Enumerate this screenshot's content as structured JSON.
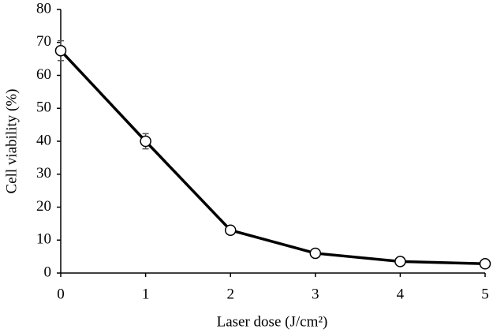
{
  "chart_data": {
    "type": "line",
    "x_label": "Laser dose (J/cm²)",
    "y_label": "Cell viability  (%)",
    "x": [
      0,
      1,
      2,
      3,
      4,
      5
    ],
    "values": [
      67.5,
      40,
      13,
      6,
      3.5,
      2.8
    ],
    "errors": [
      3,
      2.3,
      0.5,
      0.5,
      0.5,
      0.3
    ],
    "color": "#000000",
    "xlim": [
      0,
      5
    ],
    "xticks": [
      0,
      1,
      2,
      3,
      4,
      5
    ],
    "ylim": [
      0,
      80
    ],
    "yticks": [
      0,
      10,
      20,
      30,
      40,
      50,
      60,
      70,
      80
    ],
    "grid": false
  }
}
